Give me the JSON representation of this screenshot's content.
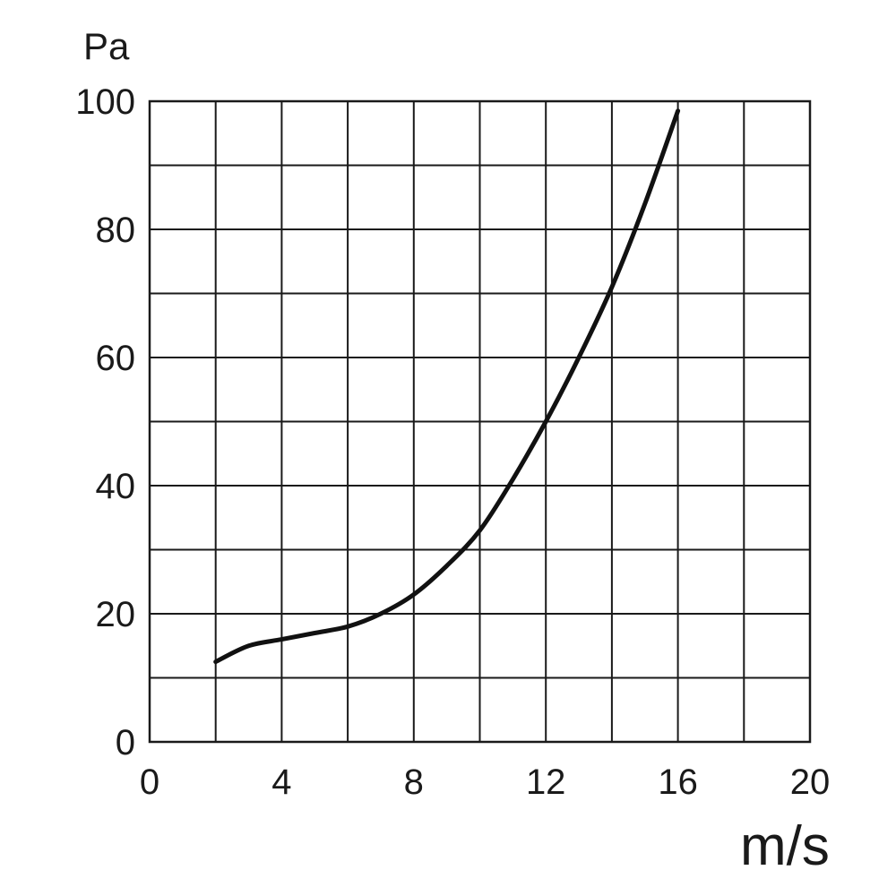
{
  "chart_data": {
    "type": "line",
    "title": "",
    "xlabel": "m/s",
    "ylabel": "Pa",
    "xlim": [
      0,
      20
    ],
    "ylim": [
      0,
      100
    ],
    "x_ticks": [
      "0",
      "4",
      "8",
      "12",
      "16",
      "20"
    ],
    "y_ticks": [
      "0",
      "20",
      "40",
      "60",
      "80",
      "100"
    ],
    "x_tick_values": [
      0,
      4,
      8,
      12,
      16,
      20
    ],
    "y_tick_values": [
      0,
      20,
      40,
      60,
      80,
      100
    ],
    "x_grid_step": 2,
    "y_grid_step": 10,
    "grid": true,
    "legend": "none",
    "line_color": "#111111",
    "series": [
      {
        "x": [
          2,
          3,
          4,
          5,
          6,
          7,
          8,
          9,
          10,
          11,
          12,
          13,
          14,
          15,
          16
        ],
        "y": [
          12.5,
          15,
          16,
          17,
          18,
          20,
          23,
          27.5,
          33,
          41,
          50,
          60,
          71,
          84,
          98.5
        ]
      }
    ]
  }
}
